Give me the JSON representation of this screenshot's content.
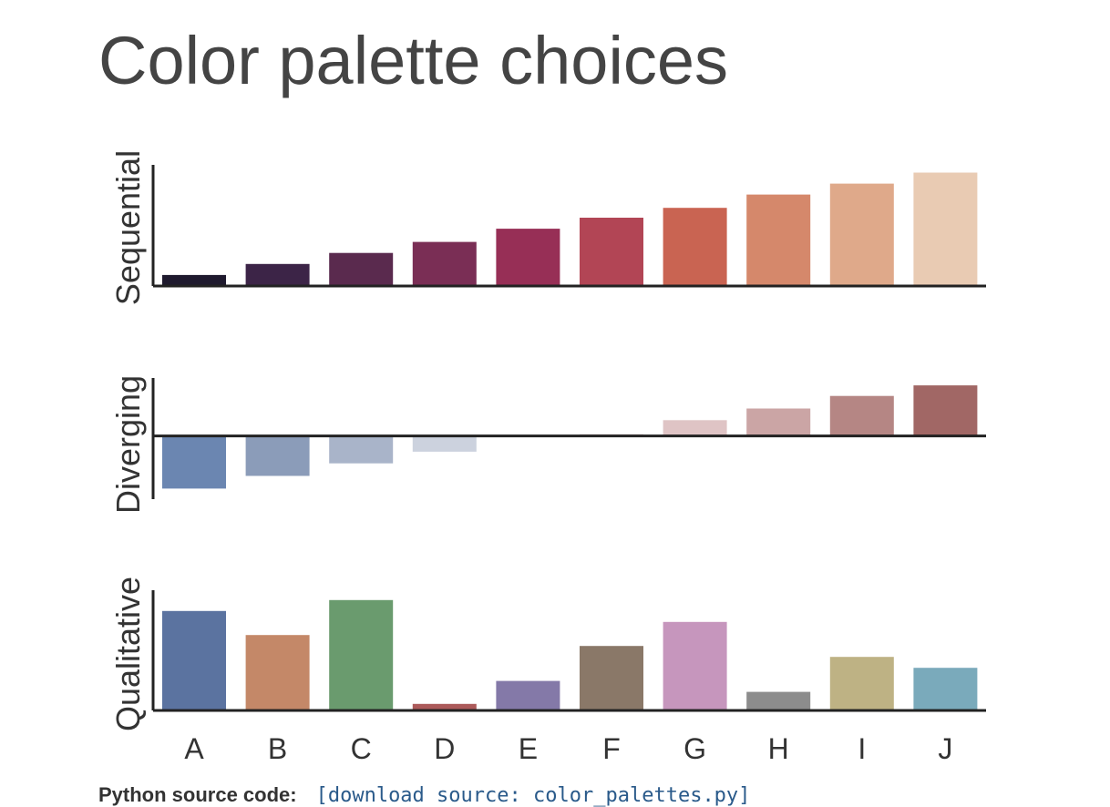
{
  "page": {
    "title": "Color palette choices",
    "footer_label": "Python source code:",
    "footer_link": "[download source: color_palettes.py]"
  },
  "chart_data": {
    "type": "bar",
    "categories": [
      "A",
      "B",
      "C",
      "D",
      "E",
      "F",
      "G",
      "H",
      "I",
      "J"
    ],
    "panels": [
      {
        "ylabel": "Sequential",
        "values": [
          1,
          2,
          3,
          4,
          5.2,
          6.2,
          7.1,
          8.3,
          9.3,
          10.3
        ],
        "ylim": [
          0,
          11
        ],
        "colors": [
          "#1f1a2e",
          "#3c2447",
          "#5a2a4e",
          "#7a2e55",
          "#972f56",
          "#b24555",
          "#c96452",
          "#d5886b",
          "#dfa98a",
          "#e9cbb3"
        ]
      },
      {
        "ylabel": "Diverging",
        "values": [
          -5,
          -3.8,
          -2.6,
          -1.5,
          0,
          0.2,
          1.5,
          2.6,
          3.8,
          4.8
        ],
        "ylim": [
          -6,
          5.5
        ],
        "colors": [
          "#6b86b1",
          "#8b9cb9",
          "#a9b4c9",
          "#ccd2de",
          "#f0eded",
          "#efe5e5",
          "#dfc4c5",
          "#cba5a5",
          "#b58684",
          "#a16765"
        ]
      },
      {
        "ylabel": "Qualitative",
        "values": [
          9.1,
          6.9,
          10.1,
          0.6,
          2.7,
          5.9,
          8.1,
          1.7,
          4.9,
          3.9
        ],
        "ylim": [
          0,
          11
        ],
        "colors": [
          "#5b73a0",
          "#c48868",
          "#6a9b6e",
          "#ac5a5a",
          "#8479a8",
          "#8a7868",
          "#c696bd",
          "#8c8c8c",
          "#beb284",
          "#7aaabb"
        ]
      }
    ]
  }
}
